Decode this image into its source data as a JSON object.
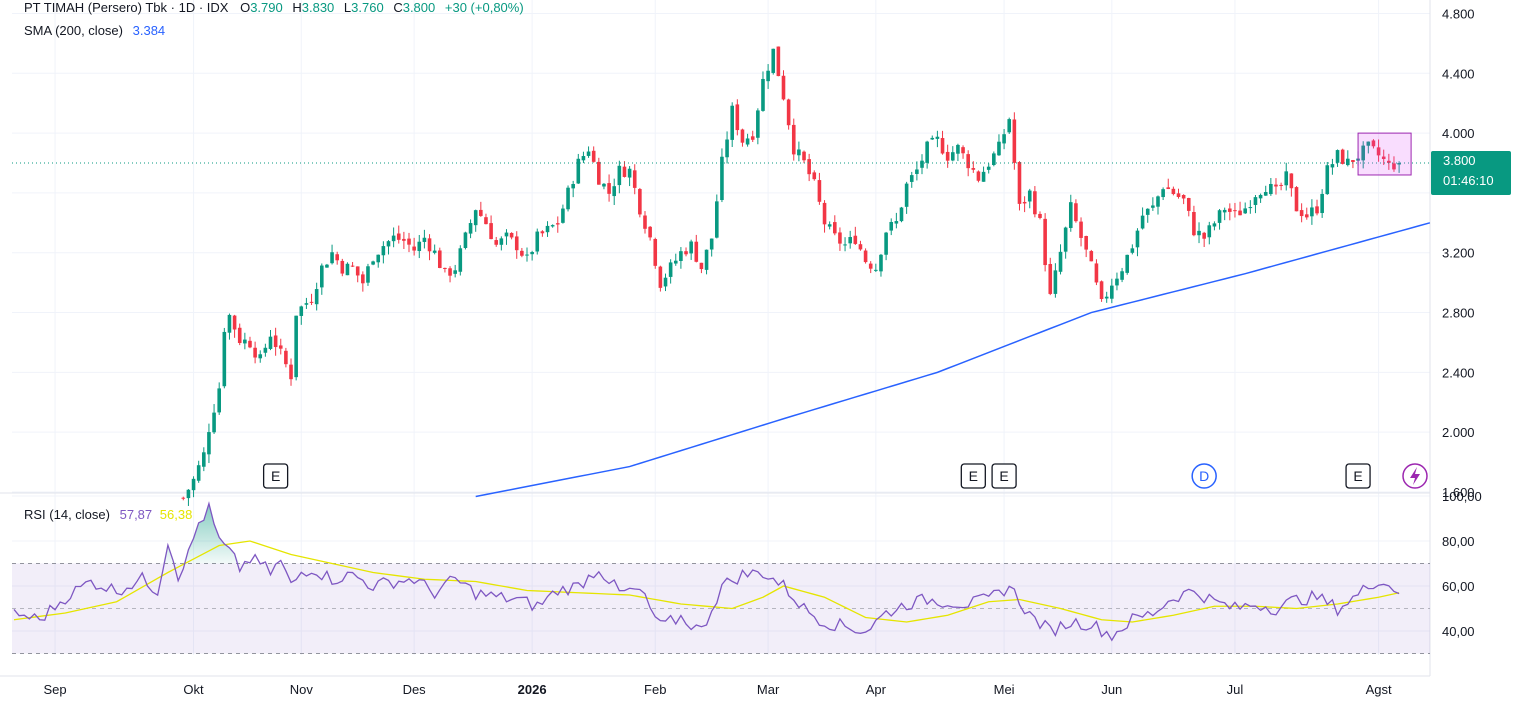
{
  "header": {
    "symbol": "PT TIMAH (Persero) Tbk · 1D · IDX",
    "open_label": "O",
    "open": "3.790",
    "high_label": "H",
    "high": "3.830",
    "low_label": "L",
    "low": "3.760",
    "close_label": "C",
    "close": "3.800",
    "change": "+30 (+0,80%)"
  },
  "sma": {
    "label": "SMA (200, close)",
    "value": "3.384"
  },
  "rsi": {
    "label": "RSI (14, close)",
    "value": "57,87",
    "ma_value": "56,38"
  },
  "price_tag": {
    "price": "3.800",
    "countdown": "01:46:10"
  },
  "colors": {
    "up": "#089981",
    "down": "#f23645",
    "sma": "#2962ff",
    "rsi": "#7e57c2",
    "rsi_ma": "#e5e500"
  },
  "chart_data": {
    "type": "candlestick",
    "price_axis": {
      "ticks": [
        1600,
        2000,
        2400,
        2800,
        3200,
        3600,
        4000,
        4400,
        4800
      ],
      "tick_labels": [
        "1.600",
        "2.000",
        "2.400",
        "2.800",
        "3.200",
        "3.600",
        "4.000",
        "4.400",
        "4.800"
      ],
      "range": [
        1600,
        4850
      ]
    },
    "rsi_axis": {
      "ticks": [
        40,
        60,
        80,
        100
      ],
      "tick_labels": [
        "40,00",
        "60,00",
        "80,00",
        "100,00"
      ],
      "range": [
        20,
        100
      ],
      "bands": [
        30,
        50,
        70
      ]
    },
    "time_axis": [
      {
        "label": "Sep",
        "day": 8,
        "bold": false
      },
      {
        "label": "Okt",
        "day": 35,
        "bold": false
      },
      {
        "label": "Nov",
        "day": 56,
        "bold": false
      },
      {
        "label": "Des",
        "day": 78,
        "bold": false
      },
      {
        "label": "2026",
        "day": 101,
        "bold": true
      },
      {
        "label": "Feb",
        "day": 125,
        "bold": false
      },
      {
        "label": "Mar",
        "day": 147,
        "bold": false
      },
      {
        "label": "Apr",
        "day": 168,
        "bold": false
      },
      {
        "label": "Mei",
        "day": 193,
        "bold": false
      },
      {
        "label": "Jun",
        "day": 214,
        "bold": false
      },
      {
        "label": "Jul",
        "day": 238,
        "bold": false
      },
      {
        "label": "Agst",
        "day": 266,
        "bold": false
      }
    ],
    "events": [
      {
        "label": "E",
        "day": 51
      },
      {
        "label": "E",
        "day": 187
      },
      {
        "label": "E",
        "day": 193
      },
      {
        "label": "D",
        "day": 232
      },
      {
        "label": "E",
        "day": 262
      }
    ],
    "close_line": 3800,
    "sma_line": [
      [
        90,
        1570
      ],
      [
        120,
        1770
      ],
      [
        150,
        2090
      ],
      [
        180,
        2400
      ],
      [
        210,
        2800
      ],
      [
        240,
        3060
      ],
      [
        276,
        3400
      ]
    ],
    "closes_anchor": [
      [
        33,
        1560
      ],
      [
        35,
        1680
      ],
      [
        37,
        1850
      ],
      [
        38,
        2030
      ],
      [
        40,
        2300
      ],
      [
        41,
        2700
      ],
      [
        42,
        2780
      ],
      [
        44,
        2620
      ],
      [
        46,
        2600
      ],
      [
        48,
        2480
      ],
      [
        50,
        2660
      ],
      [
        52,
        2520
      ],
      [
        54,
        2380
      ],
      [
        55,
        2800
      ],
      [
        58,
        2900
      ],
      [
        60,
        3100
      ],
      [
        62,
        3200
      ],
      [
        64,
        3100
      ],
      [
        66,
        3100
      ],
      [
        68,
        3000
      ],
      [
        70,
        3180
      ],
      [
        72,
        3250
      ],
      [
        74,
        3300
      ],
      [
        76,
        3280
      ],
      [
        78,
        3220
      ],
      [
        80,
        3300
      ],
      [
        82,
        3200
      ],
      [
        84,
        3050
      ],
      [
        86,
        3100
      ],
      [
        88,
        3300
      ],
      [
        90,
        3500
      ],
      [
        92,
        3400
      ],
      [
        94,
        3250
      ],
      [
        96,
        3300
      ],
      [
        98,
        3250
      ],
      [
        100,
        3150
      ],
      [
        102,
        3300
      ],
      [
        104,
        3350
      ],
      [
        106,
        3400
      ],
      [
        108,
        3600
      ],
      [
        110,
        3800
      ],
      [
        112,
        3900
      ],
      [
        114,
        3700
      ],
      [
        116,
        3600
      ],
      [
        118,
        3750
      ],
      [
        120,
        3750
      ],
      [
        122,
        3500
      ],
      [
        124,
        3300
      ],
      [
        126,
        3000
      ],
      [
        128,
        3100
      ],
      [
        130,
        3200
      ],
      [
        132,
        3250
      ],
      [
        134,
        3100
      ],
      [
        136,
        3300
      ],
      [
        138,
        3800
      ],
      [
        140,
        4150
      ],
      [
        142,
        3950
      ],
      [
        144,
        4000
      ],
      [
        146,
        4350
      ],
      [
        148,
        4550
      ],
      [
        150,
        4250
      ],
      [
        152,
        3900
      ],
      [
        154,
        3800
      ],
      [
        156,
        3650
      ],
      [
        158,
        3400
      ],
      [
        160,
        3300
      ],
      [
        162,
        3250
      ],
      [
        164,
        3300
      ],
      [
        166,
        3150
      ],
      [
        168,
        3100
      ],
      [
        170,
        3350
      ],
      [
        172,
        3400
      ],
      [
        174,
        3650
      ],
      [
        176,
        3750
      ],
      [
        178,
        3900
      ],
      [
        180,
        3950
      ],
      [
        182,
        3850
      ],
      [
        184,
        3900
      ],
      [
        186,
        3800
      ],
      [
        188,
        3700
      ],
      [
        190,
        3800
      ],
      [
        192,
        3900
      ],
      [
        194,
        4100
      ],
      [
        196,
        3500
      ],
      [
        198,
        3600
      ],
      [
        200,
        3400
      ],
      [
        202,
        2900
      ],
      [
        204,
        3200
      ],
      [
        206,
        3500
      ],
      [
        208,
        3300
      ],
      [
        210,
        3100
      ],
      [
        212,
        2850
      ],
      [
        214,
        3000
      ],
      [
        216,
        3100
      ],
      [
        218,
        3250
      ],
      [
        220,
        3450
      ],
      [
        222,
        3500
      ],
      [
        224,
        3650
      ],
      [
        226,
        3600
      ],
      [
        228,
        3550
      ],
      [
        230,
        3350
      ],
      [
        232,
        3300
      ],
      [
        234,
        3400
      ],
      [
        236,
        3500
      ],
      [
        238,
        3450
      ],
      [
        240,
        3500
      ],
      [
        242,
        3600
      ],
      [
        244,
        3650
      ],
      [
        246,
        3600
      ],
      [
        248,
        3700
      ],
      [
        250,
        3500
      ],
      [
        252,
        3450
      ],
      [
        254,
        3500
      ],
      [
        256,
        3750
      ],
      [
        258,
        3850
      ],
      [
        260,
        3800
      ],
      [
        262,
        3850
      ],
      [
        264,
        3900
      ],
      [
        266,
        3850
      ],
      [
        268,
        3780
      ],
      [
        270,
        3800
      ]
    ],
    "rsi_anchor": [
      [
        0,
        48
      ],
      [
        5,
        45
      ],
      [
        10,
        55
      ],
      [
        15,
        62
      ],
      [
        20,
        58
      ],
      [
        25,
        63
      ],
      [
        28,
        58
      ],
      [
        30,
        80
      ],
      [
        32,
        65
      ],
      [
        34,
        74
      ],
      [
        36,
        88
      ],
      [
        38,
        94
      ],
      [
        40,
        80
      ],
      [
        42,
        75
      ],
      [
        44,
        68
      ],
      [
        46,
        72
      ],
      [
        48,
        70
      ],
      [
        50,
        66
      ],
      [
        52,
        71
      ],
      [
        54,
        60
      ],
      [
        56,
        66
      ],
      [
        58,
        68
      ],
      [
        62,
        63
      ],
      [
        66,
        65
      ],
      [
        70,
        60
      ],
      [
        74,
        62
      ],
      [
        78,
        63
      ],
      [
        82,
        57
      ],
      [
        86,
        63
      ],
      [
        90,
        57
      ],
      [
        94,
        55
      ],
      [
        98,
        54
      ],
      [
        102,
        51
      ],
      [
        106,
        58
      ],
      [
        110,
        60
      ],
      [
        114,
        68
      ],
      [
        118,
        57
      ],
      [
        122,
        58
      ],
      [
        126,
        42
      ],
      [
        130,
        46
      ],
      [
        134,
        40
      ],
      [
        138,
        60
      ],
      [
        142,
        65
      ],
      [
        146,
        66
      ],
      [
        150,
        60
      ],
      [
        154,
        50
      ],
      [
        158,
        44
      ],
      [
        162,
        42
      ],
      [
        166,
        40
      ],
      [
        170,
        48
      ],
      [
        174,
        52
      ],
      [
        178,
        54
      ],
      [
        182,
        53
      ],
      [
        186,
        52
      ],
      [
        190,
        54
      ],
      [
        194,
        60
      ],
      [
        198,
        47
      ],
      [
        202,
        40
      ],
      [
        206,
        44
      ],
      [
        210,
        43
      ],
      [
        214,
        38
      ],
      [
        218,
        45
      ],
      [
        222,
        48
      ],
      [
        226,
        55
      ],
      [
        230,
        58
      ],
      [
        234,
        53
      ],
      [
        238,
        50
      ],
      [
        242,
        52
      ],
      [
        246,
        50
      ],
      [
        250,
        54
      ],
      [
        254,
        55
      ],
      [
        258,
        50
      ],
      [
        262,
        56
      ],
      [
        264,
        60
      ],
      [
        266,
        63
      ],
      [
        268,
        60
      ],
      [
        270,
        58
      ]
    ],
    "rsi_ma_anchor": [
      [
        0,
        45
      ],
      [
        10,
        48
      ],
      [
        20,
        53
      ],
      [
        30,
        66
      ],
      [
        40,
        78
      ],
      [
        46,
        80
      ],
      [
        54,
        74
      ],
      [
        62,
        70
      ],
      [
        70,
        66
      ],
      [
        80,
        63
      ],
      [
        90,
        62
      ],
      [
        100,
        58
      ],
      [
        110,
        57
      ],
      [
        120,
        56
      ],
      [
        130,
        52
      ],
      [
        140,
        50
      ],
      [
        146,
        55
      ],
      [
        150,
        60
      ],
      [
        158,
        55
      ],
      [
        166,
        46
      ],
      [
        174,
        44
      ],
      [
        182,
        47
      ],
      [
        190,
        53
      ],
      [
        196,
        54
      ],
      [
        204,
        50
      ],
      [
        212,
        45
      ],
      [
        218,
        44
      ],
      [
        226,
        47
      ],
      [
        234,
        51
      ],
      [
        242,
        51
      ],
      [
        250,
        50
      ],
      [
        258,
        52
      ],
      [
        266,
        55
      ],
      [
        270,
        57
      ]
    ]
  }
}
